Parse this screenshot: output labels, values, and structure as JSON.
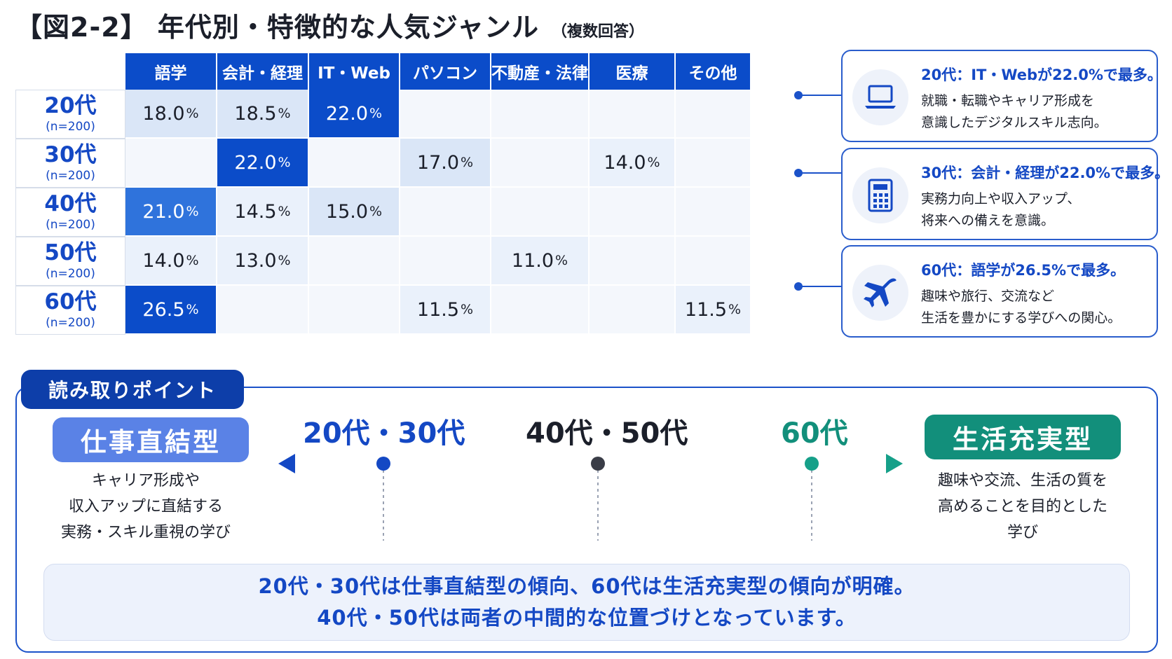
{
  "header": {
    "title": "【図2-2】 年代別・特徴的な人気ジャンル",
    "subtitle": "（複数回答）"
  },
  "chart_data": {
    "type": "heatmap",
    "columns": [
      "語学",
      "会計・経理",
      "IT・Web",
      "パソコン",
      "不動産・法律",
      "医療",
      "その他"
    ],
    "rows": [
      {
        "age": "20代",
        "n": "(n=200)",
        "values": [
          18.0,
          18.5,
          22.0,
          null,
          null,
          null,
          null
        ]
      },
      {
        "age": "30代",
        "n": "(n=200)",
        "values": [
          null,
          22.0,
          null,
          17.0,
          null,
          14.0,
          null
        ]
      },
      {
        "age": "40代",
        "n": "(n=200)",
        "values": [
          21.0,
          14.5,
          15.0,
          null,
          null,
          null,
          null
        ]
      },
      {
        "age": "50代",
        "n": "(n=200)",
        "values": [
          14.0,
          13.0,
          null,
          null,
          11.0,
          null,
          null
        ]
      },
      {
        "age": "60代",
        "n": "(n=200)",
        "values": [
          26.5,
          null,
          null,
          11.5,
          null,
          null,
          11.5
        ]
      }
    ],
    "unit": "%",
    "colors": {
      "strong": "#0b4cc9",
      "medium": "#2f73dc",
      "light": "#dae6f7",
      "faint": "#eaf1fb",
      "empty": "#f4f7fc"
    }
  },
  "callouts": [
    {
      "icon": "laptop-icon",
      "title": "20代：IT・Webが22.0%で最多。",
      "line1": "就職・転職やキャリア形成を",
      "line2": "意識したデジタルスキル志向。"
    },
    {
      "icon": "calculator-icon",
      "title": "30代：会計・経理が22.0%で最多。",
      "line1": "実務力向上や収入アップ、",
      "line2": "将来への備えを意識。"
    },
    {
      "icon": "airplane-icon",
      "title": "60代：語学が26.5%で最多。",
      "line1": "趣味や旅行、交流など",
      "line2": "生活を豊かにする学びへの関心。"
    }
  ],
  "reading_points": {
    "tab_label": "読み取りポイント",
    "left_type": "仕事直結型",
    "left_desc": [
      "キャリア形成や",
      "収入アップに直結する",
      "実務・スキル重視の学び"
    ],
    "right_type": "生活充実型",
    "right_desc": [
      "趣味や交流、生活の質を",
      "高めることを目的とした",
      "学び"
    ],
    "axis_labels": [
      {
        "text": "20代・30代",
        "color": "#1448c4"
      },
      {
        "text": "40代・50代",
        "color": "#1b1f2a"
      },
      {
        "text": "60代",
        "color": "#128f7b"
      }
    ],
    "summary": [
      "20代・30代は仕事直結型の傾向、60代は生活充実型の傾向が明確。",
      "40代・50代は両者の中間的な位置づけとなっています。"
    ]
  }
}
